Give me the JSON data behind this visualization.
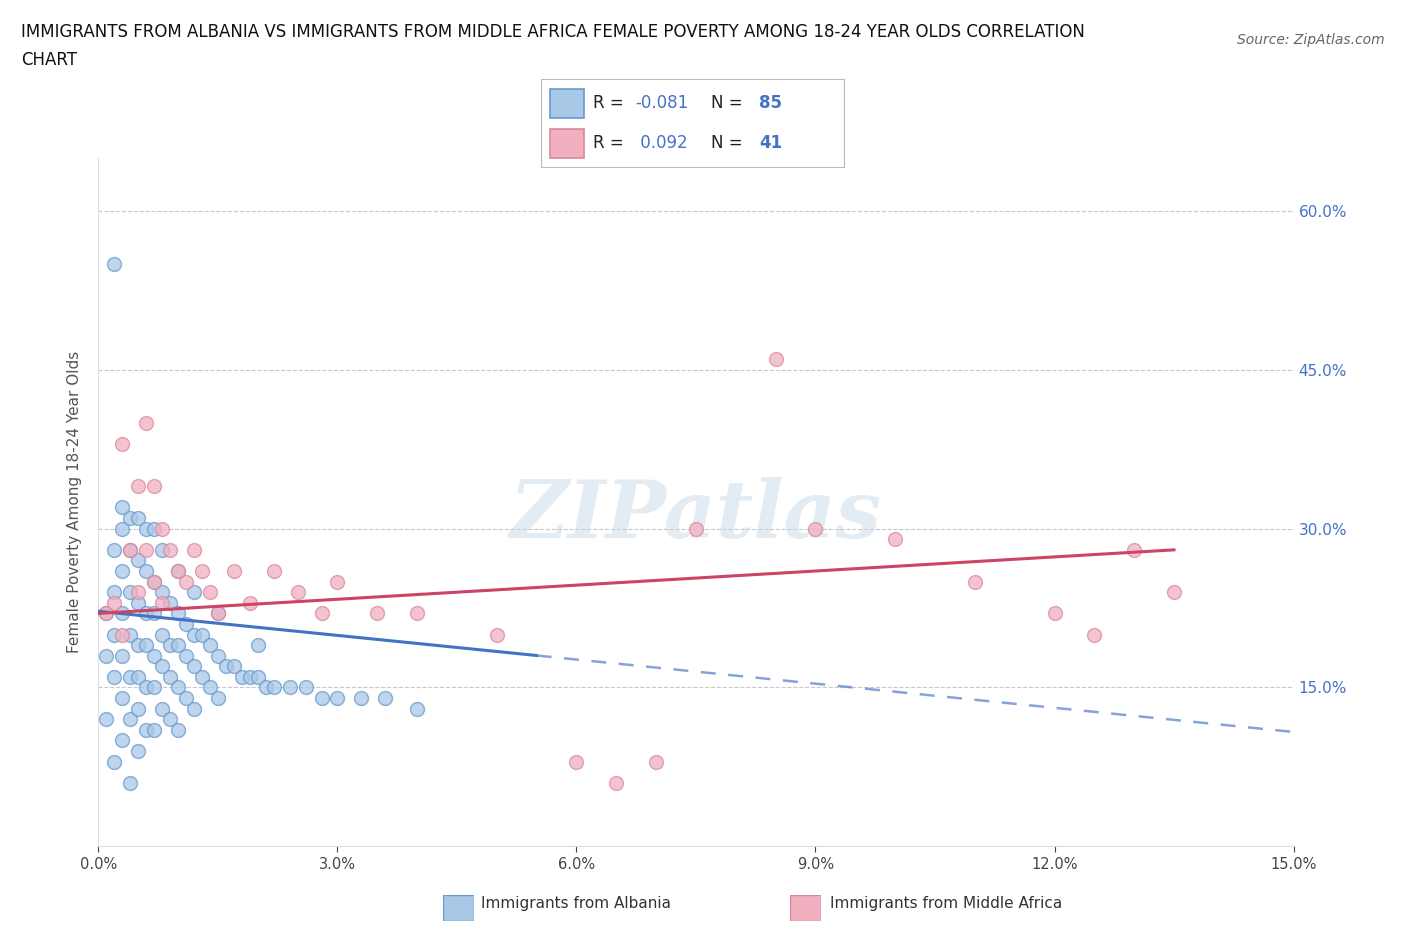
{
  "title_line1": "IMMIGRANTS FROM ALBANIA VS IMMIGRANTS FROM MIDDLE AFRICA FEMALE POVERTY AMONG 18-24 YEAR OLDS CORRELATION",
  "title_line2": "CHART",
  "source": "Source: ZipAtlas.com",
  "ylabel": "Female Poverty Among 18-24 Year Olds",
  "xlim": [
    0.0,
    0.15
  ],
  "ylim": [
    0.0,
    0.65
  ],
  "xtick_vals": [
    0.0,
    0.03,
    0.06,
    0.09,
    0.12,
    0.15
  ],
  "xtick_labels": [
    "0.0%",
    "3.0%",
    "6.0%",
    "9.0%",
    "12.0%",
    "15.0%"
  ],
  "ytick_vals": [
    0.0,
    0.15,
    0.3,
    0.45,
    0.6
  ],
  "right_ytick_vals": [
    0.15,
    0.3,
    0.45,
    0.6
  ],
  "right_ytick_labels": [
    "15.0%",
    "30.0%",
    "45.0%",
    "60.0%"
  ],
  "albania_color": "#a8c8e8",
  "albania_edge": "#6699cc",
  "middle_africa_color": "#f0b0c0",
  "middle_africa_edge": "#dd8899",
  "albania_R": -0.081,
  "albania_N": 85,
  "middle_africa_R": 0.092,
  "middle_africa_N": 41,
  "trend_blue": "#4472c4",
  "trend_pink": "#cc4466",
  "legend_R_color": "#4472c4",
  "legend_N_color": "#4472c4",
  "watermark": "ZIPatlas",
  "legend_label_albania": "Immigrants from Albania",
  "legend_label_middle_africa": "Immigrants from Middle Africa",
  "albania_x": [
    0.001,
    0.001,
    0.001,
    0.002,
    0.002,
    0.002,
    0.002,
    0.002,
    0.003,
    0.003,
    0.003,
    0.003,
    0.003,
    0.003,
    0.004,
    0.004,
    0.004,
    0.004,
    0.004,
    0.004,
    0.005,
    0.005,
    0.005,
    0.005,
    0.005,
    0.005,
    0.006,
    0.006,
    0.006,
    0.006,
    0.006,
    0.007,
    0.007,
    0.007,
    0.007,
    0.007,
    0.008,
    0.008,
    0.008,
    0.008,
    0.009,
    0.009,
    0.009,
    0.009,
    0.01,
    0.01,
    0.01,
    0.01,
    0.011,
    0.011,
    0.011,
    0.012,
    0.012,
    0.012,
    0.013,
    0.013,
    0.014,
    0.014,
    0.015,
    0.015,
    0.016,
    0.017,
    0.018,
    0.019,
    0.02,
    0.021,
    0.022,
    0.024,
    0.026,
    0.028,
    0.03,
    0.033,
    0.036,
    0.04,
    0.002,
    0.003,
    0.004,
    0.005,
    0.006,
    0.007,
    0.008,
    0.01,
    0.012,
    0.015,
    0.02
  ],
  "albania_y": [
    0.22,
    0.18,
    0.12,
    0.28,
    0.24,
    0.2,
    0.16,
    0.08,
    0.3,
    0.26,
    0.22,
    0.18,
    0.14,
    0.1,
    0.28,
    0.24,
    0.2,
    0.16,
    0.12,
    0.06,
    0.27,
    0.23,
    0.19,
    0.16,
    0.13,
    0.09,
    0.26,
    0.22,
    0.19,
    0.15,
    0.11,
    0.25,
    0.22,
    0.18,
    0.15,
    0.11,
    0.24,
    0.2,
    0.17,
    0.13,
    0.23,
    0.19,
    0.16,
    0.12,
    0.22,
    0.19,
    0.15,
    0.11,
    0.21,
    0.18,
    0.14,
    0.2,
    0.17,
    0.13,
    0.2,
    0.16,
    0.19,
    0.15,
    0.18,
    0.14,
    0.17,
    0.17,
    0.16,
    0.16,
    0.16,
    0.15,
    0.15,
    0.15,
    0.15,
    0.14,
    0.14,
    0.14,
    0.14,
    0.13,
    0.55,
    0.32,
    0.31,
    0.31,
    0.3,
    0.3,
    0.28,
    0.26,
    0.24,
    0.22,
    0.19
  ],
  "middle_africa_x": [
    0.001,
    0.002,
    0.003,
    0.003,
    0.004,
    0.005,
    0.005,
    0.006,
    0.006,
    0.007,
    0.007,
    0.008,
    0.008,
    0.009,
    0.01,
    0.011,
    0.012,
    0.013,
    0.014,
    0.015,
    0.017,
    0.019,
    0.022,
    0.025,
    0.028,
    0.03,
    0.035,
    0.04,
    0.05,
    0.06,
    0.065,
    0.07,
    0.075,
    0.085,
    0.09,
    0.1,
    0.11,
    0.12,
    0.125,
    0.13,
    0.135
  ],
  "middle_africa_y": [
    0.22,
    0.23,
    0.2,
    0.38,
    0.28,
    0.34,
    0.24,
    0.4,
    0.28,
    0.34,
    0.25,
    0.3,
    0.23,
    0.28,
    0.26,
    0.25,
    0.28,
    0.26,
    0.24,
    0.22,
    0.26,
    0.23,
    0.26,
    0.24,
    0.22,
    0.25,
    0.22,
    0.22,
    0.2,
    0.08,
    0.06,
    0.08,
    0.3,
    0.46,
    0.3,
    0.29,
    0.25,
    0.22,
    0.2,
    0.28,
    0.24
  ]
}
